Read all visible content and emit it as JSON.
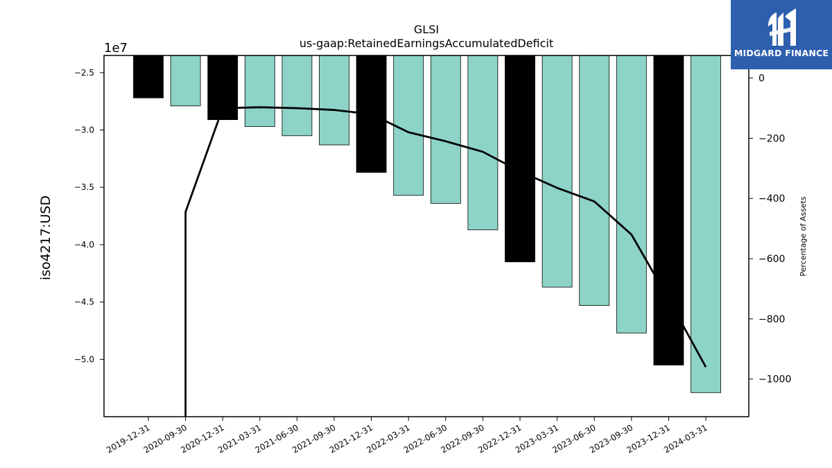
{
  "chart_data": {
    "type": "bar",
    "title": "GLSI",
    "subtitle": "us-gaap:RetainedEarningsAccumulatedDeficit",
    "ylabel": "iso4217:USD",
    "y2label": "Percentage of Assets",
    "y_offset_label": "1e7",
    "categories": [
      "2019-12-31",
      "2020-09-30",
      "2020-12-31",
      "2021-03-31",
      "2021-06-30",
      "2021-09-30",
      "2021-12-31",
      "2022-03-31",
      "2022-06-30",
      "2022-09-30",
      "2022-12-31",
      "2023-03-31",
      "2023-06-30",
      "2023-09-30",
      "2023-12-31",
      "2024-03-31"
    ],
    "values": [
      -27200000,
      -27900000,
      -29100000,
      -29700000,
      -30500000,
      -31300000,
      -33700000,
      -35700000,
      -36400000,
      -38700000,
      -41500000,
      -43700000,
      -45300000,
      -47700000,
      -50500000,
      -52900000
    ],
    "bar_colors": [
      "#000000",
      "#8dd3c7",
      "#000000",
      "#8dd3c7",
      "#8dd3c7",
      "#8dd3c7",
      "#000000",
      "#8dd3c7",
      "#8dd3c7",
      "#8dd3c7",
      "#000000",
      "#8dd3c7",
      "#8dd3c7",
      "#8dd3c7",
      "#000000",
      "#8dd3c7"
    ],
    "ylim": [
      -55000000,
      -23500000
    ],
    "yticks": [
      -25000000,
      -30000000,
      -35000000,
      -40000000,
      -45000000,
      -50000000
    ],
    "ytick_labels": [
      "−2.5",
      "−3.0",
      "−3.5",
      "−4.0",
      "−4.5",
      "−5.0"
    ],
    "line_series": {
      "name": "Percentage of Assets",
      "values": [
        null,
        -445,
        -100,
        -97,
        -100,
        -106,
        -120,
        -180,
        -210,
        -245,
        -310,
        -365,
        -410,
        -520,
        -735,
        -960
      ],
      "drop_to_bottom_at": 1
    },
    "y2lim": [
      -1125,
      75
    ],
    "y2ticks": [
      0,
      -200,
      -400,
      -600,
      -800,
      -1000
    ],
    "y2tick_labels": [
      "0",
      "−200",
      "−400",
      "−600",
      "−800",
      "−1000"
    ],
    "grid": false,
    "colors": {
      "bar_primary": "#8dd3c7",
      "bar_secondary": "#000000",
      "line": "#000000"
    }
  },
  "logo": {
    "text": "MIDGARD FINANCE",
    "icon": "midgard-logo-icon",
    "background": "#2d5fae"
  }
}
